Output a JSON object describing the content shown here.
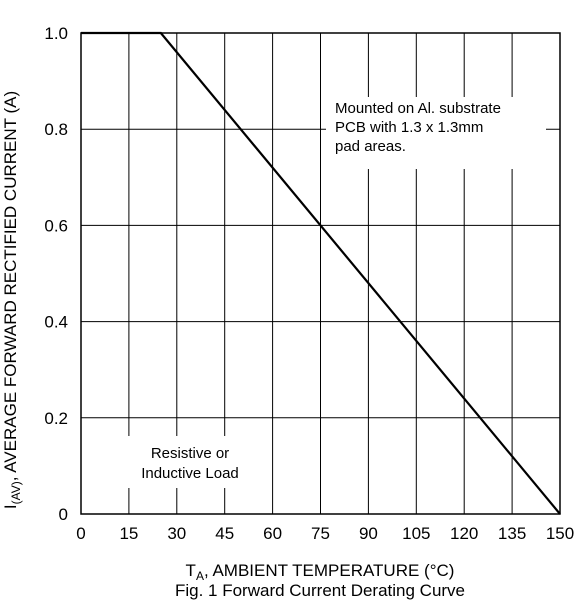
{
  "chart_data": {
    "type": "line",
    "caption": "Fig. 1 Forward Current Derating Curve",
    "xlabel": {
      "main": "T",
      "sub": "A",
      "rest": ", AMBIENT TEMPERATURE (°C)"
    },
    "ylabel": {
      "main": "I",
      "sub": "(AV)",
      "rest": ", AVERAGE FORWARD RECTIFIED CURRENT (A)"
    },
    "x_ticks": [
      "0",
      "15",
      "30",
      "45",
      "60",
      "75",
      "90",
      "105",
      "120",
      "135",
      "150"
    ],
    "y_ticks": [
      "0",
      "0.2",
      "0.4",
      "0.6",
      "0.8",
      "1.0"
    ],
    "xlim": [
      0,
      150
    ],
    "ylim": [
      0,
      1.0
    ],
    "grid": true,
    "series": [
      {
        "x": [
          0,
          25,
          150
        ],
        "y": [
          1.0,
          1.0,
          0
        ]
      }
    ],
    "annotations": [
      {
        "lines": [
          "Mounted on Al. substrate",
          "PCB with 1.3 x 1.3mm",
          "pad areas."
        ]
      },
      {
        "lines": [
          "Resistive or",
          "Inductive Load"
        ]
      }
    ]
  }
}
